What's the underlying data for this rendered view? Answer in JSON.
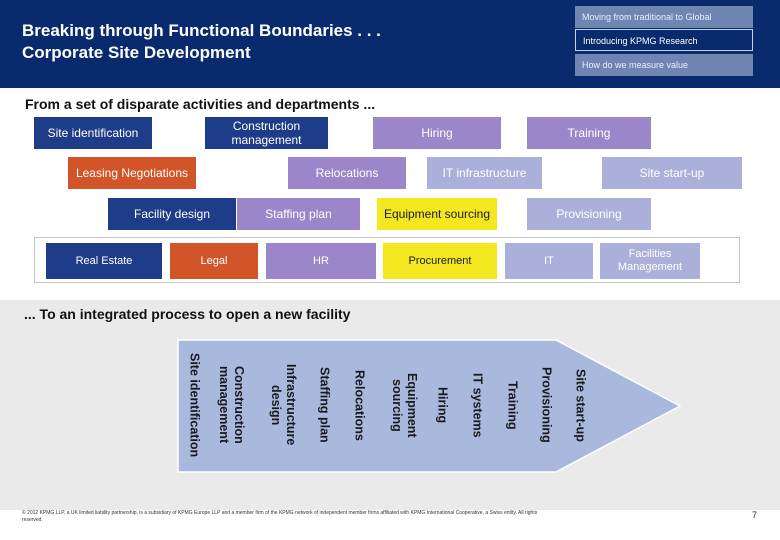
{
  "header": {
    "title_line1": "Breaking through Functional Boundaries . . .",
    "title_line2": "Corporate Site Development",
    "nav": [
      "Moving from traditional to Global",
      "Introducing KPMG Research",
      "How do we measure value"
    ]
  },
  "section1_title": "From a set of disparate activities and departments ...",
  "activities": {
    "site_identification": "Site identification",
    "construction_management": "Construction management",
    "hiring": "Hiring",
    "training": "Training",
    "leasing_negotiations": "Leasing Negotiations",
    "relocations": "Relocations",
    "it_infrastructure": "IT infrastructure",
    "site_startup": "Site start-up",
    "facility_design": "Facility design",
    "staffing_plan": "Staffing plan",
    "equipment_sourcing": "Equipment sourcing",
    "provisioning": "Provisioning"
  },
  "departments": {
    "real_estate": "Real Estate",
    "legal": "Legal",
    "hr": "HR",
    "procurement": "Procurement",
    "it": "IT",
    "facilities_management": "Facilities Management"
  },
  "section2_title": "... To an integrated process to open a new facility",
  "process_steps": [
    "Site identification",
    "Construction management",
    "Infrastructure design",
    "Staffing plan",
    "Relocations",
    "Equipment sourcing",
    "Hiring",
    "IT systems",
    "Training",
    "Provisioning",
    "Site start-up"
  ],
  "footer": {
    "legal": "© 2012 KPMG LLP, a UK limited liability partnership, is a subsidiary of KPMG Europe LLP and a member firm of the KPMG network of independent member firms affiliated with KPMG International Cooperative, a Swiss entity. All rights reserved.",
    "page": "7"
  },
  "colors": {
    "navy": "#0a2a6e",
    "blue": "#1f3c88",
    "orange": "#d2552a",
    "purple": "#9a86c8",
    "lavender": "#aab0d9",
    "yellow": "#f3e81f",
    "band": "#eaeaea",
    "arrow": "#a9b8dd"
  }
}
